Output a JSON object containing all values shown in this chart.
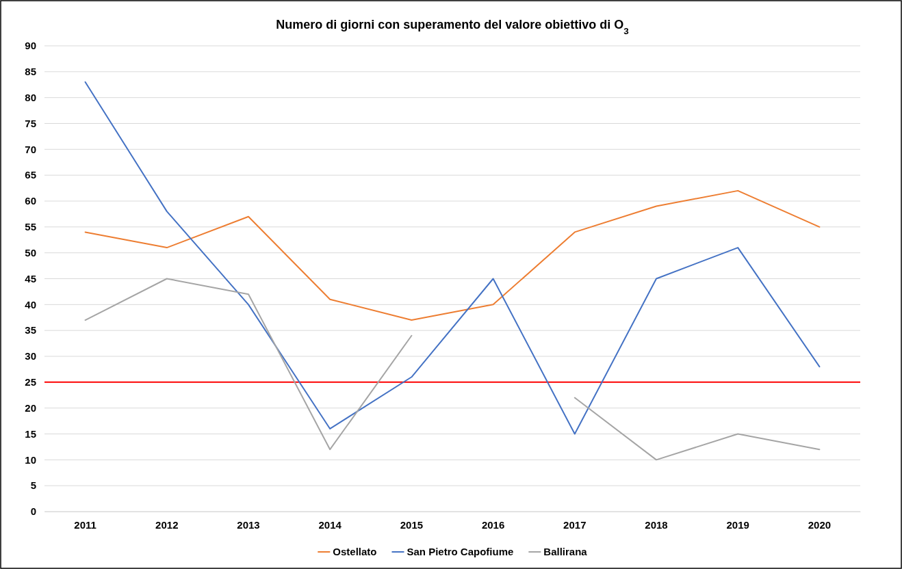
{
  "chart_data": {
    "type": "line",
    "title": "Numero di giorni con superamento del valore obiettivo di O$_{3}$",
    "categories": [
      "2011",
      "2012",
      "2013",
      "2014",
      "2015",
      "2016",
      "2017",
      "2018",
      "2019",
      "2020"
    ],
    "series": [
      {
        "name": "Ostellato",
        "color": "#ed7d31",
        "values": [
          54,
          51,
          57,
          41,
          37,
          40,
          54,
          59,
          62,
          55
        ]
      },
      {
        "name": "San Pietro Capofiume",
        "color": "#4472c4",
        "values": [
          83,
          58,
          40,
          16,
          26,
          45,
          15,
          45,
          51,
          28
        ]
      },
      {
        "name": "Ballirana",
        "color": "#a5a5a5",
        "values": [
          37,
          45,
          42,
          12,
          34,
          null,
          22,
          10,
          15,
          12
        ]
      }
    ],
    "ylim": [
      0,
      90
    ],
    "yticks": [
      0,
      5,
      10,
      15,
      20,
      25,
      30,
      35,
      40,
      45,
      50,
      55,
      60,
      65,
      70,
      75,
      80,
      85,
      90
    ],
    "grid": "y",
    "legend": "bottom",
    "marker": "none",
    "line_style": "solid",
    "ref_lines": [
      {
        "axis": "y",
        "value": 25,
        "color": "#ff0000"
      }
    ]
  }
}
